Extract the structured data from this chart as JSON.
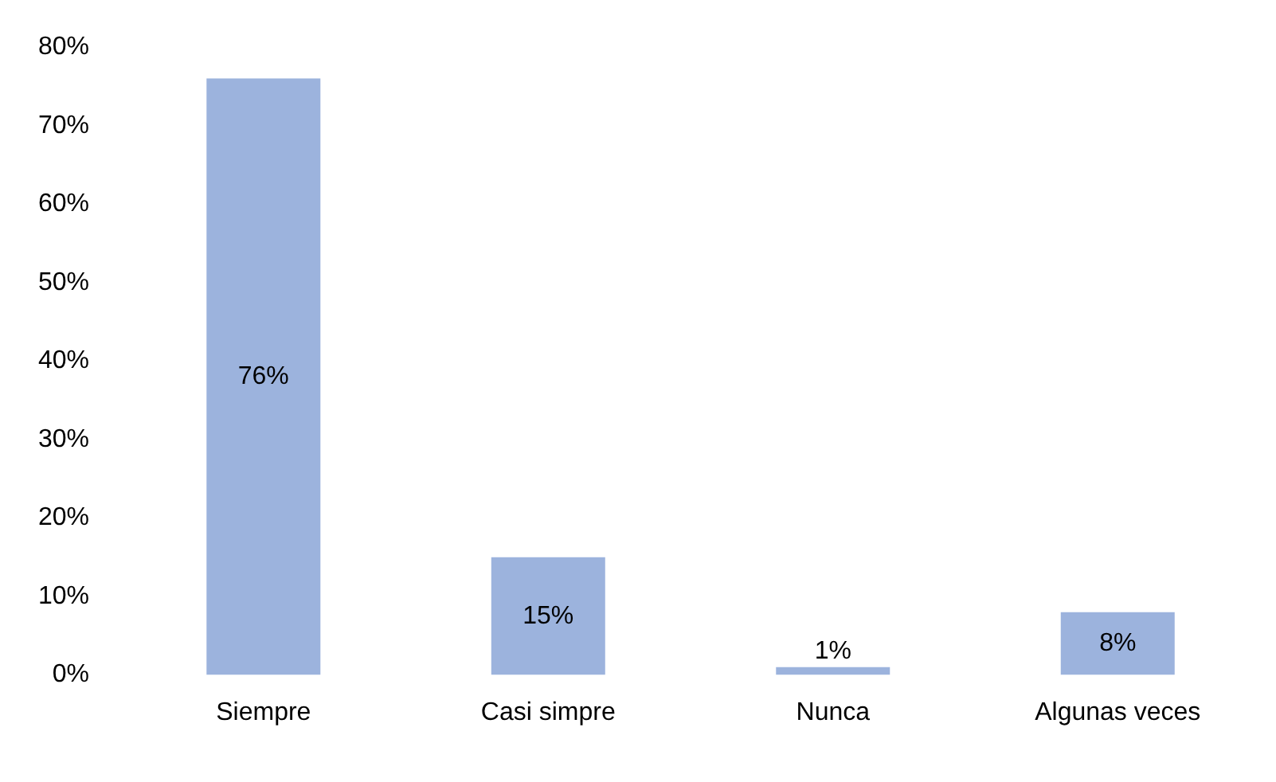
{
  "chart_data": {
    "type": "bar",
    "categories": [
      "Siempre",
      "Casi simpre",
      "Nunca",
      "Algunas veces"
    ],
    "values": [
      76,
      15,
      1,
      8
    ],
    "value_labels": [
      "76%",
      "15%",
      "1%",
      "8%"
    ],
    "color": "#9cb3dd",
    "ylim": [
      0,
      80
    ],
    "yticks": [
      {
        "value": 0,
        "label": "0%"
      },
      {
        "value": 10,
        "label": "10%"
      },
      {
        "value": 20,
        "label": "20%"
      },
      {
        "value": 30,
        "label": "30%"
      },
      {
        "value": 40,
        "label": "40%"
      },
      {
        "value": 50,
        "label": "50%"
      },
      {
        "value": 60,
        "label": "60%"
      },
      {
        "value": 70,
        "label": "70%"
      },
      {
        "value": 80,
        "label": "80%"
      }
    ],
    "grid": false,
    "legend": false
  }
}
